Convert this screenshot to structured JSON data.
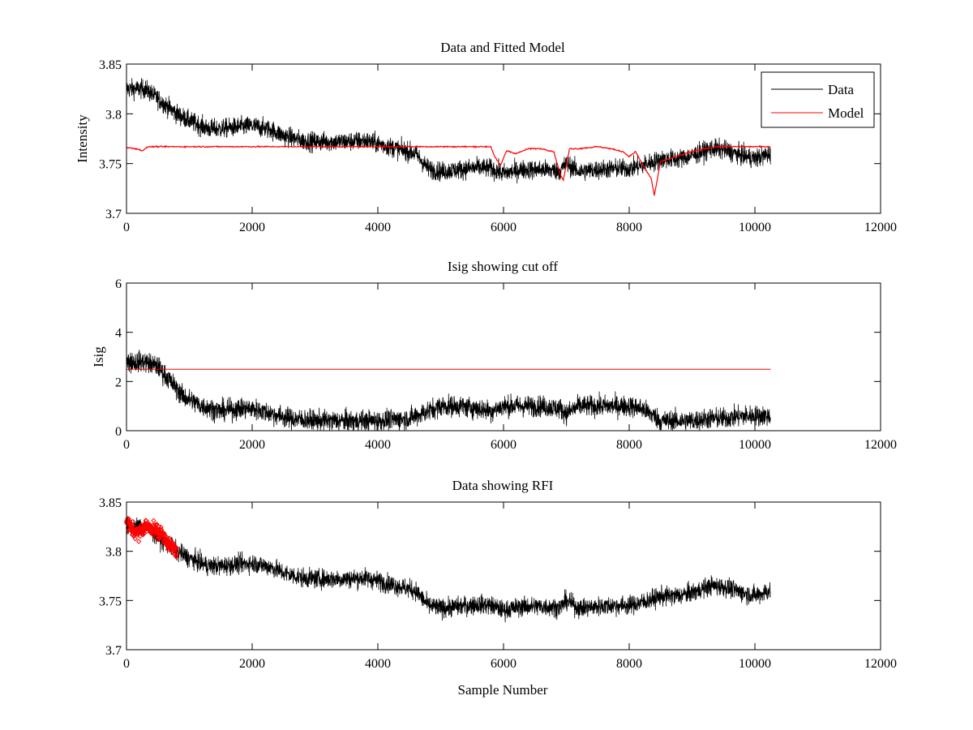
{
  "colors": {
    "data": "#000000",
    "model": "#ff0000",
    "rfi": "#ff0000",
    "cutoff": "#ff0000"
  },
  "chart_data": [
    {
      "type": "line",
      "title": "Data and Fitted Model",
      "xlabel": "",
      "ylabel": "Intensity",
      "xlim": [
        0,
        12000
      ],
      "ylim": [
        3.7,
        3.85
      ],
      "xticks": [
        "0",
        "2000",
        "4000",
        "6000",
        "8000",
        "10000",
        "12000"
      ],
      "yticks": [
        "3.7",
        "3.75",
        "3.8",
        "3.85"
      ],
      "legend": {
        "position": "top-right",
        "entries": [
          "Data",
          "Model"
        ]
      },
      "series": [
        {
          "name": "Data",
          "x": [
            0,
            300,
            500,
            800,
            1000,
            1300,
            1500,
            1800,
            2000,
            2300,
            2500,
            2800,
            3000,
            3300,
            3500,
            3800,
            4000,
            4300,
            4600,
            4800,
            5000,
            5300,
            5600,
            5800,
            6000,
            6300,
            6600,
            6900,
            7000,
            7200,
            7500,
            7800,
            8000,
            8200,
            8500,
            8800,
            9000,
            9300,
            9500,
            9800,
            10000,
            10250
          ],
          "values": [
            3.825,
            3.825,
            3.815,
            3.8,
            3.793,
            3.785,
            3.785,
            3.787,
            3.788,
            3.784,
            3.778,
            3.773,
            3.772,
            3.772,
            3.772,
            3.773,
            3.77,
            3.765,
            3.76,
            3.745,
            3.742,
            3.744,
            3.746,
            3.745,
            3.74,
            3.744,
            3.744,
            3.743,
            3.75,
            3.742,
            3.744,
            3.745,
            3.745,
            3.748,
            3.754,
            3.755,
            3.758,
            3.765,
            3.764,
            3.758,
            3.755,
            3.76
          ]
        },
        {
          "name": "Model",
          "x": [
            0,
            150,
            250,
            350,
            5800,
            5850,
            5950,
            6050,
            6200,
            6400,
            6600,
            6800,
            6900,
            6950,
            7050,
            7200,
            7500,
            7700,
            7900,
            8000,
            8100,
            8250,
            8350,
            8400,
            8500,
            8600,
            8700,
            9000,
            9200,
            9400,
            9600,
            10000,
            10250
          ],
          "values": [
            3.766,
            3.765,
            3.763,
            3.767,
            3.767,
            3.758,
            3.748,
            3.763,
            3.76,
            3.765,
            3.765,
            3.762,
            3.74,
            3.733,
            3.765,
            3.765,
            3.767,
            3.765,
            3.762,
            3.757,
            3.762,
            3.745,
            3.735,
            3.718,
            3.752,
            3.754,
            3.756,
            3.762,
            3.765,
            3.767,
            3.767,
            3.767,
            3.767
          ]
        }
      ]
    },
    {
      "type": "line",
      "title": "Isig showing cut off",
      "xlabel": "",
      "ylabel": "Isig",
      "xlim": [
        0,
        12000
      ],
      "ylim": [
        0,
        6
      ],
      "xticks": [
        "0",
        "2000",
        "4000",
        "6000",
        "8000",
        "10000",
        "12000"
      ],
      "yticks": [
        "0",
        "2",
        "4",
        "6"
      ],
      "series": [
        {
          "x": [
            0,
            300,
            500,
            700,
            900,
            1200,
            1500,
            1800,
            2000,
            2300,
            2600,
            3000,
            3500,
            4000,
            4500,
            4800,
            5000,
            5300,
            5600,
            5800,
            6000,
            6300,
            6600,
            6900,
            7000,
            7200,
            7500,
            7800,
            8000,
            8200,
            8400,
            8500,
            8800,
            9000,
            9300,
            9500,
            9800,
            10000,
            10250
          ],
          "values": [
            2.8,
            2.8,
            2.6,
            2.0,
            1.4,
            1.0,
            0.8,
            0.9,
            0.9,
            0.7,
            0.5,
            0.4,
            0.4,
            0.4,
            0.5,
            0.8,
            1.0,
            1.0,
            0.9,
            0.8,
            1.0,
            1.0,
            1.0,
            0.9,
            0.7,
            1.0,
            1.0,
            1.0,
            1.0,
            0.9,
            0.6,
            0.4,
            0.4,
            0.4,
            0.5,
            0.5,
            0.6,
            0.6,
            0.6
          ]
        },
        {
          "x": [
            0,
            10250
          ],
          "values": [
            2.5,
            2.5
          ]
        }
      ]
    },
    {
      "type": "line",
      "title": "Data showing RFI",
      "xlabel": "Sample Number",
      "ylabel": "",
      "xlim": [
        0,
        12000
      ],
      "ylim": [
        3.7,
        3.85
      ],
      "xticks": [
        "0",
        "2000",
        "4000",
        "6000",
        "8000",
        "10000",
        "12000"
      ],
      "yticks": [
        "3.7",
        "3.75",
        "3.8",
        "3.85"
      ],
      "series": [
        {
          "x": [
            0,
            300,
            500,
            800,
            1000,
            1300,
            1500,
            1800,
            2000,
            2300,
            2500,
            2800,
            3000,
            3300,
            3500,
            3800,
            4000,
            4300,
            4600,
            4800,
            5000,
            5300,
            5600,
            5800,
            6000,
            6300,
            6600,
            6900,
            7000,
            7200,
            7500,
            7800,
            8000,
            8200,
            8500,
            8800,
            9000,
            9300,
            9500,
            9800,
            10000,
            10250
          ],
          "values": [
            3.825,
            3.825,
            3.815,
            3.8,
            3.793,
            3.785,
            3.785,
            3.787,
            3.788,
            3.784,
            3.778,
            3.773,
            3.772,
            3.772,
            3.772,
            3.773,
            3.77,
            3.765,
            3.76,
            3.745,
            3.742,
            3.744,
            3.746,
            3.745,
            3.74,
            3.744,
            3.744,
            3.743,
            3.75,
            3.742,
            3.744,
            3.745,
            3.745,
            3.748,
            3.754,
            3.755,
            3.758,
            3.765,
            3.764,
            3.758,
            3.755,
            3.76
          ]
        },
        {
          "x": [
            0,
            100,
            200,
            300,
            400,
            500,
            600,
            700,
            800
          ],
          "values": [
            3.83,
            3.822,
            3.818,
            3.826,
            3.824,
            3.82,
            3.815,
            3.805,
            3.8
          ]
        }
      ]
    }
  ]
}
